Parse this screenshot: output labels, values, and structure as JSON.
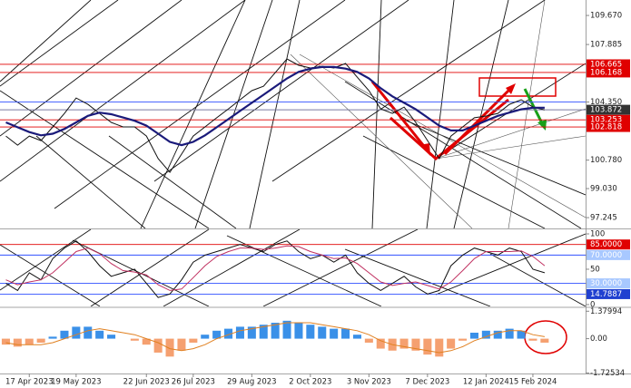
{
  "chart_data": [
    {
      "type": "line",
      "categories": [
        null,
        null,
        "17 Apr 2023",
        null,
        null,
        null,
        "19 May 2023",
        null,
        null,
        null,
        null,
        null,
        "22 Jun 2023",
        null,
        null,
        null,
        "26 Jul 2023",
        null,
        null,
        null,
        null,
        "29 Aug 2023",
        null,
        null,
        null,
        null,
        "2 Oct 2023",
        null,
        null,
        null,
        null,
        "3 Nov 2023",
        null,
        null,
        null,
        null,
        "7 Dec 2023",
        null,
        null,
        null,
        null,
        "12 Jan 2024",
        null,
        null,
        null,
        "15 Feb 2024",
        null
      ],
      "series": [
        {
          "color": "#111111",
          "values": [
            102.26,
            101.7,
            102.26,
            101.98,
            102.82,
            103.65,
            104.6,
            104.21,
            103.65,
            103.1,
            102.82,
            102.82,
            102.26,
            100.87,
            100.03,
            101.15,
            102.26,
            102.82,
            103.38,
            103.93,
            104.49,
            105.05,
            105.32,
            106.16,
            107.0,
            106.61,
            106.44,
            106.55,
            106.44,
            106.72,
            105.88,
            105.05,
            103.93,
            103.65,
            104.04,
            103.1,
            101.98,
            100.87,
            102.26,
            102.82,
            103.38,
            103.49,
            103.65,
            104.21,
            104.49,
            104.04,
            103.87
          ]
        },
        {
          "color": "#1a1a7a",
          "values": [
            103.1,
            102.8,
            102.5,
            102.3,
            102.4,
            102.7,
            103.1,
            103.5,
            103.7,
            103.6,
            103.4,
            103.2,
            102.9,
            102.4,
            101.9,
            101.7,
            101.9,
            102.3,
            102.8,
            103.3,
            103.8,
            104.3,
            104.8,
            105.3,
            105.8,
            106.2,
            106.4,
            106.5,
            106.5,
            106.4,
            106.2,
            105.8,
            105.2,
            104.7,
            104.3,
            103.9,
            103.4,
            102.9,
            102.6,
            102.6,
            102.9,
            103.2,
            103.5,
            103.7,
            103.9,
            104.0,
            104.0
          ]
        }
      ],
      "ylim": [
        96.58,
        110.62
      ],
      "yticks": [
        {
          "value": 109.67,
          "label": "109.670"
        },
        {
          "value": 107.885,
          "label": "107.885"
        },
        {
          "value": 106.665,
          "label": "106.665",
          "line": "#e00000",
          "box": "#e00000"
        },
        {
          "value": 106.168,
          "label": "106.168",
          "line": "#e00000",
          "box": "#e00000"
        },
        {
          "value": 104.35,
          "label": "104.350",
          "line": "#3050ff"
        },
        {
          "value": 103.872,
          "label": "103.872",
          "line": "#7a7aa0",
          "box": "#333333"
        },
        {
          "value": 103.253,
          "label": "103.253",
          "line": "#e00000",
          "box": "#e00000"
        },
        {
          "value": 102.818,
          "label": "102.818",
          "line": "#e00000",
          "box": "#e00000"
        },
        {
          "value": 100.78,
          "label": "100.780"
        },
        {
          "value": 99.03,
          "label": "99.030"
        },
        {
          "value": 97.245,
          "label": "97.245"
        }
      ]
    },
    {
      "type": "line",
      "series": [
        {
          "color": "#111111",
          "values": [
            30,
            20,
            45,
            35,
            65,
            80,
            90,
            75,
            55,
            40,
            45,
            50,
            30,
            10,
            15,
            35,
            60,
            70,
            75,
            80,
            85,
            80,
            75,
            85,
            90,
            75,
            65,
            70,
            60,
            70,
            45,
            30,
            20,
            30,
            40,
            25,
            15,
            20,
            55,
            70,
            80,
            75,
            70,
            80,
            75,
            50,
            45
          ]
        },
        {
          "color": "#c03060",
          "values": [
            35,
            28,
            32,
            35,
            45,
            60,
            75,
            80,
            72,
            58,
            48,
            46,
            42,
            28,
            20,
            22,
            38,
            55,
            68,
            75,
            80,
            80,
            78,
            80,
            83,
            82,
            75,
            70,
            65,
            66,
            58,
            45,
            32,
            27,
            30,
            32,
            27,
            22,
            32,
            48,
            65,
            75,
            75,
            75,
            76,
            68,
            55
          ]
        }
      ],
      "ylim": [
        -2.6,
        106.4
      ],
      "yticks": [
        100,
        {
          "value": 85,
          "label": "85.0000",
          "line": "#e00000",
          "box": "#e00000"
        },
        {
          "value": 70,
          "label": "70.0000",
          "line": "#3050ff",
          "box": "#a8c8ff"
        },
        50,
        {
          "value": 30,
          "label": "30.0000",
          "line": "#3050ff",
          "box": "#a8c8ff"
        },
        {
          "value": 14.7887,
          "line": "#3050ff",
          "box": "#2040d0"
        },
        0
      ]
    },
    {
      "type": "bar",
      "color": "#3a90e8",
      "negative_color": "#f5a070",
      "values": [
        -0.3,
        -0.4,
        -0.3,
        -0.2,
        0.1,
        0.4,
        0.6,
        0.6,
        0.4,
        0.2,
        0.0,
        -0.1,
        -0.3,
        -0.7,
        -0.9,
        -0.6,
        -0.2,
        0.2,
        0.4,
        0.5,
        0.6,
        0.6,
        0.7,
        0.8,
        0.9,
        0.8,
        0.7,
        0.6,
        0.5,
        0.5,
        0.2,
        -0.2,
        -0.5,
        -0.6,
        -0.5,
        -0.6,
        -0.8,
        -0.9,
        -0.5,
        -0.1,
        0.3,
        0.4,
        0.4,
        0.5,
        0.4,
        -0.1,
        -0.2
      ],
      "series": [
        {
          "color": "#e08020",
          "values": [
            -0.2,
            -0.3,
            -0.3,
            -0.3,
            -0.2,
            0.0,
            0.2,
            0.4,
            0.5,
            0.4,
            0.3,
            0.2,
            0.0,
            -0.2,
            -0.5,
            -0.6,
            -0.5,
            -0.3,
            0.0,
            0.2,
            0.4,
            0.5,
            0.6,
            0.7,
            0.8,
            0.8,
            0.8,
            0.7,
            0.6,
            0.5,
            0.4,
            0.2,
            -0.1,
            -0.3,
            -0.4,
            -0.5,
            -0.6,
            -0.7,
            -0.6,
            -0.4,
            -0.1,
            0.1,
            0.3,
            0.4,
            0.4,
            0.2,
            0.1
          ]
        }
      ],
      "ylim": [
        -1.75,
        1.53
      ],
      "yticks": [
        1.37994,
        {
          "value": 0,
          "label": "0.00"
        },
        -1.72534
      ]
    }
  ]
}
